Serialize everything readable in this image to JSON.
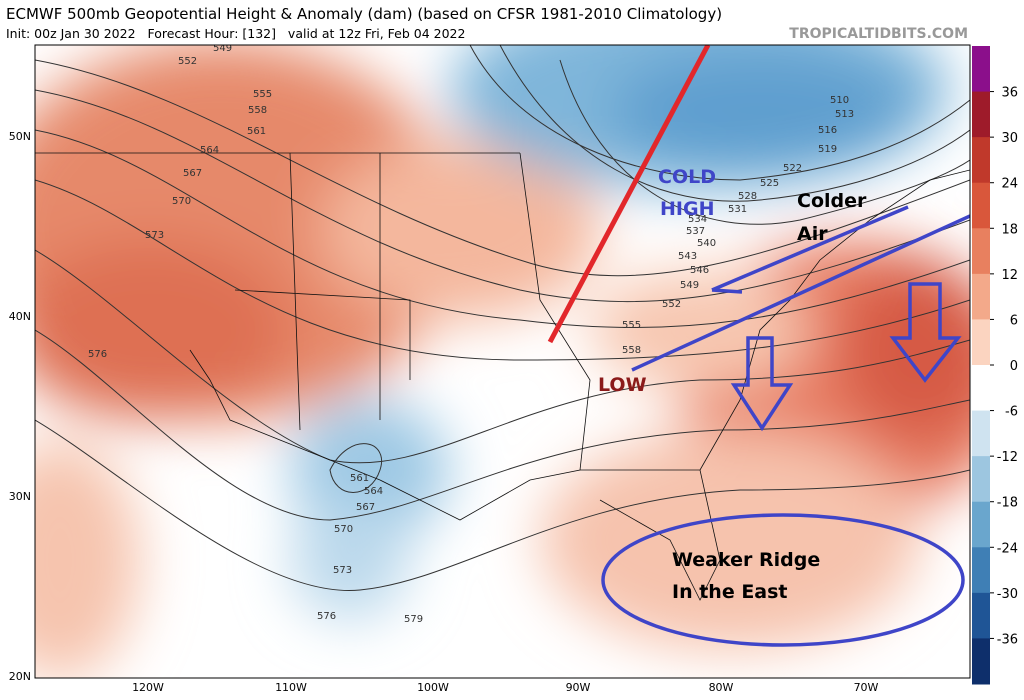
{
  "header": {
    "title": "ECMWF 500mb Geopotential Height & Anomaly (dam) (based on CFSR 1981-2010 Climatology)",
    "subtitle": "Init: 00z Jan 30 2022   Forecast Hour: [132]   valid at 12z Fri, Feb 04 2022",
    "watermark": "TROPICALTIDBITS.COM"
  },
  "map": {
    "lat_labels": [
      "50N",
      "40N",
      "30N",
      "20N"
    ],
    "lon_labels": [
      "120W",
      "110W",
      "100W",
      "90W",
      "80W",
      "70W"
    ],
    "contour_labels": [
      "549",
      "552",
      "555",
      "558",
      "561",
      "564",
      "567",
      "570",
      "573",
      "576",
      "510",
      "513",
      "516",
      "519",
      "522",
      "525",
      "528",
      "531",
      "534",
      "537",
      "540",
      "543",
      "546",
      "549",
      "552",
      "555",
      "558",
      "561",
      "564",
      "567",
      "570",
      "573",
      "576",
      "579"
    ],
    "annotations": {
      "cold_high": [
        "COLD",
        "HIGH"
      ],
      "colder_air": [
        "Colder",
        "Air"
      ],
      "low": "LOW",
      "ridge": [
        "Weaker Ridge",
        "In the East"
      ]
    }
  },
  "colorbar": {
    "ticks": [
      36,
      30,
      24,
      18,
      12,
      6,
      0,
      -6,
      -12,
      -18,
      -24,
      -30,
      -36
    ],
    "colors": [
      "#8b0f8b",
      "#9e1b2a",
      "#c0392b",
      "#d9573b",
      "#e8805f",
      "#f3a98a",
      "#fbd4c0",
      "#ffffff",
      "#cfe3f0",
      "#9dc6e0",
      "#6aa6cd",
      "#3f7fb5",
      "#1f5596",
      "#0e2f6b"
    ]
  }
}
